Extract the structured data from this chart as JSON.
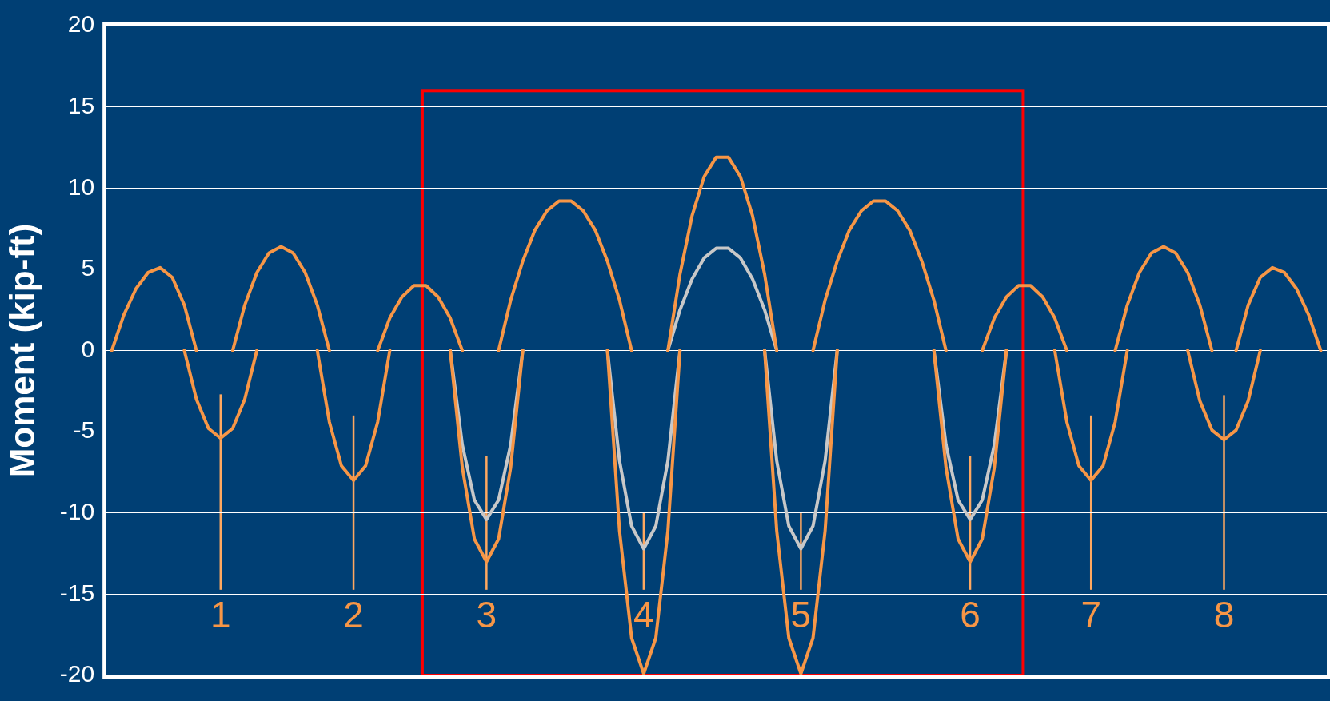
{
  "chart_data": {
    "type": "line",
    "ylabel": "Moment (kip-ft)",
    "categories": [
      null,
      null,
      null,
      null,
      null,
      null,
      null,
      null,
      null,
      null,
      null,
      null,
      null,
      null,
      null,
      null,
      null,
      null,
      null,
      null,
      null,
      null,
      null,
      null,
      null,
      null,
      null,
      null,
      null,
      null,
      null,
      null,
      null,
      null,
      null,
      null,
      null,
      null,
      null,
      null,
      null,
      null,
      null,
      null,
      null,
      null,
      null,
      null,
      null,
      null,
      null,
      null,
      null,
      null,
      null,
      null,
      null,
      null,
      null,
      null,
      null,
      null,
      null,
      null,
      null,
      null,
      null,
      null,
      null,
      null,
      null,
      null,
      null,
      null,
      null,
      null,
      null,
      null,
      null,
      null,
      null,
      null,
      null,
      null,
      null,
      null,
      null,
      null,
      null,
      null,
      null,
      null,
      null,
      null,
      null,
      null,
      null,
      null,
      null,
      null,
      null
    ],
    "ylim": [
      -20,
      20
    ],
    "yticks": [
      -20,
      -15,
      -10,
      -5,
      0,
      5,
      10,
      15,
      20
    ],
    "tick_labels": "y",
    "grid": "y",
    "marker": "none",
    "line_style": "solid",
    "series": [
      {
        "color": "#f79646",
        "values": [
          0,
          2.2,
          3.8,
          4.8,
          5.1,
          4.5,
          2.8,
          0,
          null,
          null,
          0,
          2.8,
          4.8,
          6.0,
          6.4,
          6.0,
          4.8,
          2.8,
          0,
          null,
          null,
          null,
          0,
          2.0,
          3.3,
          4.0,
          4.0,
          3.3,
          2.0,
          0,
          null,
          null,
          0,
          3.1,
          5.5,
          7.4,
          8.6,
          9.2,
          9.2,
          8.6,
          7.4,
          5.5,
          3.1,
          0,
          null,
          null,
          0,
          4.7,
          8.3,
          10.7,
          11.9,
          11.9,
          10.7,
          8.3,
          4.7,
          0,
          null,
          null,
          0,
          3.1,
          5.5,
          7.4,
          8.6,
          9.2,
          9.2,
          8.6,
          7.4,
          5.5,
          3.1,
          0,
          null,
          null,
          0,
          2.0,
          3.3,
          4.0,
          4.0,
          3.3,
          2.0,
          0,
          null,
          null,
          null,
          0,
          2.8,
          4.8,
          6.0,
          6.4,
          6.0,
          4.8,
          2.8,
          0,
          null,
          0,
          2.8,
          4.5,
          5.1,
          4.8,
          3.8,
          2.2,
          0
        ]
      },
      {
        "color": "#f79646",
        "values": [
          null,
          null,
          null,
          null,
          null,
          null,
          0,
          -3.0,
          -4.8,
          -5.4,
          -4.8,
          -3.0,
          0,
          null,
          null,
          null,
          null,
          0,
          -4.4,
          -7.1,
          -8,
          -7.1,
          -4.4,
          0,
          null,
          null,
          null,
          null,
          0,
          -7.2,
          -11.6,
          -13,
          -11.6,
          -7.2,
          0,
          null,
          null,
          null,
          null,
          null,
          null,
          0,
          -11.1,
          -17.7,
          -19.9,
          -17.7,
          -11.1,
          0,
          null,
          null,
          null,
          null,
          null,
          null,
          0,
          -11.1,
          -17.7,
          -19.9,
          -17.7,
          -11.1,
          0,
          null,
          null,
          null,
          null,
          null,
          null,
          null,
          0,
          -7.2,
          -11.6,
          -13,
          -11.6,
          -7.2,
          0,
          null,
          null,
          null,
          0,
          -4.4,
          -7.1,
          -8,
          -7.1,
          -4.4,
          0,
          null,
          null,
          null,
          null,
          0,
          -3.1,
          -4.9,
          -5.5,
          -4.9,
          -3.1,
          0,
          null,
          null,
          null,
          null,
          null
        ]
      },
      {
        "color": "#c8c8c8",
        "values": [
          null,
          null,
          null,
          null,
          null,
          null,
          null,
          null,
          null,
          null,
          null,
          null,
          null,
          null,
          null,
          null,
          null,
          null,
          null,
          null,
          null,
          null,
          null,
          null,
          null,
          null,
          null,
          null,
          null,
          null,
          null,
          null,
          null,
          null,
          null,
          null,
          null,
          null,
          null,
          null,
          null,
          null,
          null,
          null,
          null,
          null,
          0,
          2.5,
          4.4,
          5.7,
          6.3,
          6.3,
          5.7,
          4.4,
          2.5,
          0,
          null,
          null,
          null,
          null,
          null,
          null,
          null,
          null,
          null,
          null,
          null,
          null,
          null,
          null,
          null,
          null,
          null,
          null,
          null,
          null,
          null,
          null,
          null,
          null,
          null,
          null,
          null,
          null,
          null,
          null,
          null,
          null,
          null,
          null,
          null,
          null,
          null,
          null,
          null,
          null,
          null,
          null,
          null,
          null,
          null
        ]
      },
      {
        "color": "#c8c8c8",
        "values": [
          null,
          null,
          null,
          null,
          null,
          null,
          null,
          null,
          null,
          null,
          null,
          null,
          null,
          null,
          null,
          null,
          null,
          null,
          null,
          null,
          null,
          null,
          null,
          null,
          null,
          null,
          null,
          null,
          0,
          -5.8,
          -9.2,
          -10.4,
          -9.2,
          -5.8,
          0,
          null,
          null,
          null,
          null,
          null,
          null,
          0,
          -6.8,
          -10.8,
          -12.2,
          -10.8,
          -6.8,
          0,
          null,
          null,
          null,
          null,
          null,
          null,
          0,
          -6.8,
          -10.8,
          -12.2,
          -10.8,
          -6.8,
          0,
          null,
          null,
          null,
          null,
          null,
          null,
          null,
          0,
          -5.8,
          -9.2,
          -10.4,
          -9.2,
          -5.8,
          0,
          null,
          null,
          null,
          null,
          null,
          null,
          null,
          null,
          null,
          null,
          null,
          null,
          null,
          null,
          null,
          null,
          null,
          null,
          null,
          null,
          null,
          null,
          null,
          null,
          null,
          null
        ]
      }
    ],
    "annotations": [
      "1",
      "2",
      "3",
      "4",
      "5",
      "6",
      "7",
      "8"
    ]
  }
}
